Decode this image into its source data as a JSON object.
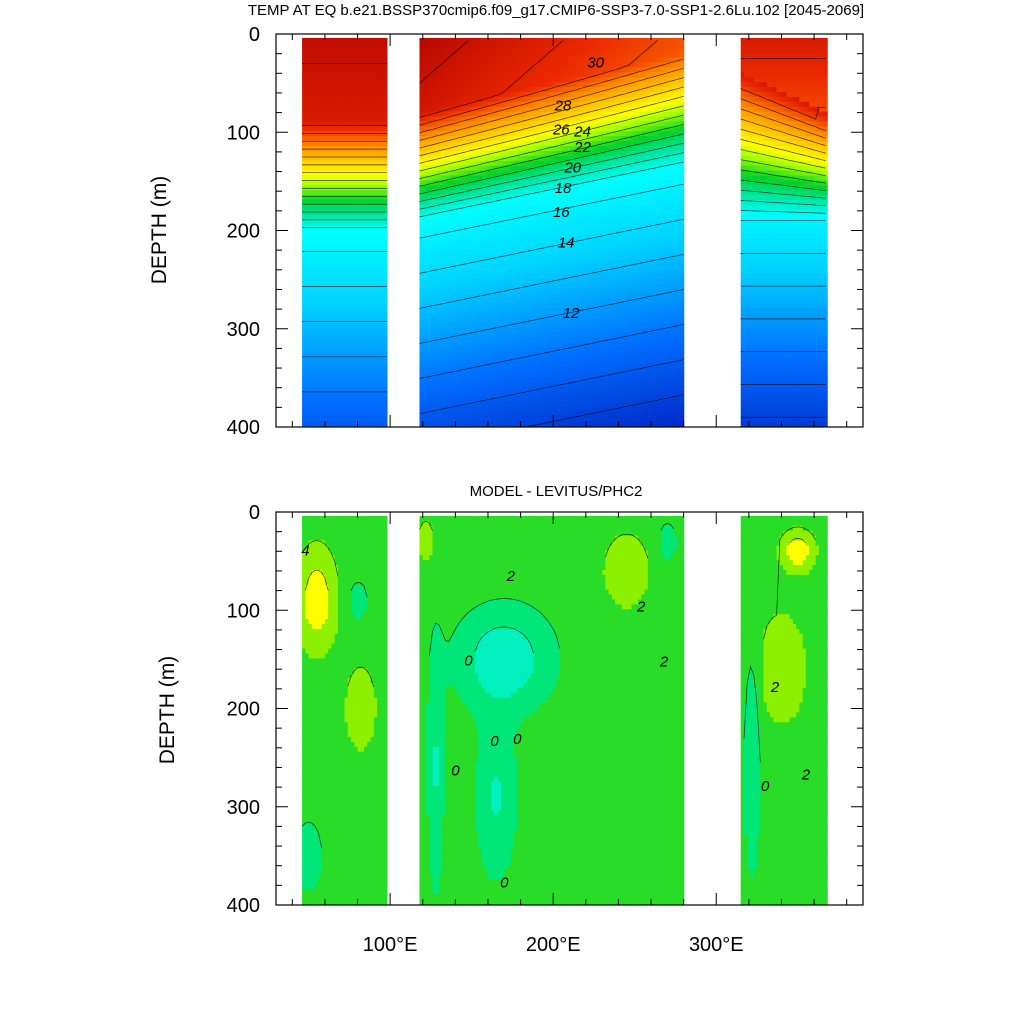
{
  "chart_data": [
    {
      "type": "heatmap",
      "title": "TEMP AT EQ b.e21.BSSP370cmip6.f09_g17.CMIP6-SSP3-7.0-SSP1-2.6Lu.102 [2045-2069]",
      "xlabel": "",
      "ylabel": "DEPTH (m)",
      "xlim": [
        30,
        390
      ],
      "ylim": [
        0,
        400
      ],
      "y_reversed": true,
      "yticks": [
        "0",
        "100",
        "200",
        "300",
        "400"
      ],
      "xticks": [],
      "land_gaps_lon": [
        [
          98,
          118
        ],
        [
          280,
          315
        ]
      ],
      "ocean_segments_lon": [
        [
          46,
          98
        ],
        [
          118,
          280
        ],
        [
          315,
          368
        ]
      ],
      "contour_levels": [
        8,
        9,
        10,
        11,
        12,
        13,
        14,
        15,
        16,
        17,
        18,
        19,
        20,
        21,
        22,
        23,
        24,
        25,
        26,
        27,
        28,
        29,
        30
      ],
      "contour_labels": [
        {
          "text": "30",
          "lon": 226,
          "depth": 30
        },
        {
          "text": "28",
          "lon": 206,
          "depth": 74
        },
        {
          "text": "26",
          "lon": 205,
          "depth": 98
        },
        {
          "text": "24",
          "lon": 218,
          "depth": 100
        },
        {
          "text": "22",
          "lon": 218,
          "depth": 116
        },
        {
          "text": "20",
          "lon": 212,
          "depth": 137
        },
        {
          "text": "18",
          "lon": 206,
          "depth": 158
        },
        {
          "text": "16",
          "lon": 205,
          "depth": 182
        },
        {
          "text": "14",
          "lon": 208,
          "depth": 213
        },
        {
          "text": "12",
          "lon": 211,
          "depth": 285
        }
      ]
    },
    {
      "type": "heatmap",
      "title": "MODEL - LEVITUS/PHC2",
      "xlabel": "",
      "ylabel": "DEPTH (m)",
      "xlim": [
        30,
        390
      ],
      "ylim": [
        0,
        400
      ],
      "y_reversed": true,
      "yticks": [
        "0",
        "100",
        "200",
        "300",
        "400"
      ],
      "xticks": [
        "100°E",
        "200°E",
        "300°E"
      ],
      "xtick_values": [
        100,
        200,
        300
      ],
      "land_gaps_lon": [
        [
          98,
          118
        ],
        [
          280,
          315
        ]
      ],
      "ocean_segments_lon": [
        [
          46,
          98
        ],
        [
          118,
          280
        ],
        [
          315,
          368
        ]
      ],
      "contour_levels": [
        -1,
        0,
        1,
        2,
        3,
        4,
        5
      ],
      "contour_labels": [
        {
          "text": "4",
          "lon": 48,
          "depth": 40
        },
        {
          "text": "2",
          "lon": 174,
          "depth": 66
        },
        {
          "text": "2",
          "lon": 254,
          "depth": 97
        },
        {
          "text": "2",
          "lon": 268,
          "depth": 153
        },
        {
          "text": "0",
          "lon": 148,
          "depth": 152
        },
        {
          "text": "2",
          "lon": 336,
          "depth": 179
        },
        {
          "text": "0",
          "lon": 164,
          "depth": 234
        },
        {
          "text": "0",
          "lon": 178,
          "depth": 232
        },
        {
          "text": "0",
          "lon": 140,
          "depth": 264
        },
        {
          "text": "0",
          "lon": 330,
          "depth": 280
        },
        {
          "text": "2",
          "lon": 355,
          "depth": 268
        },
        {
          "text": "0",
          "lon": 170,
          "depth": 378
        }
      ]
    }
  ]
}
